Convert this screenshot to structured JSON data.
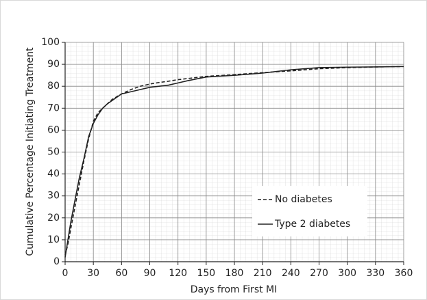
{
  "chart_data": {
    "type": "line",
    "xlabel": "Days from First MI",
    "ylabel": "Cumulative Percentage Initiating Treatment",
    "x": [
      0,
      3,
      6,
      10,
      15,
      20,
      25,
      30,
      35,
      40,
      45,
      50,
      60,
      70,
      80,
      90,
      100,
      110,
      120,
      130,
      150,
      180,
      210,
      240,
      270,
      300,
      330,
      360
    ],
    "series": [
      {
        "name": "No diabetes",
        "color": "#222222",
        "style": "dashed",
        "values": [
          3,
          8,
          15,
          24,
          35,
          46,
          56,
          64,
          68,
          70,
          72,
          74,
          76.5,
          78.5,
          80,
          81,
          81.7,
          82.3,
          83,
          83.5,
          84.5,
          85.3,
          86.2,
          87,
          88,
          88.5,
          88.8,
          89
        ]
      },
      {
        "name": "Type 2 diabetes",
        "color": "#222222",
        "style": "solid",
        "values": [
          2,
          10,
          18,
          27,
          38,
          47,
          57,
          63,
          67,
          70,
          72,
          73.5,
          76.5,
          77.5,
          78.5,
          79.5,
          80,
          80.5,
          81.5,
          82.5,
          84.2,
          85,
          86,
          87.5,
          88.5,
          88.7,
          88.8,
          89
        ]
      }
    ],
    "xlim": [
      0,
      360
    ],
    "xticks": [
      0,
      30,
      60,
      90,
      120,
      150,
      180,
      210,
      240,
      270,
      300,
      330,
      360
    ],
    "ylim": [
      0,
      100
    ],
    "yticks": [
      0,
      10,
      20,
      30,
      40,
      50,
      60,
      70,
      80,
      90,
      100
    ],
    "grid": true,
    "legend": "lower right"
  }
}
